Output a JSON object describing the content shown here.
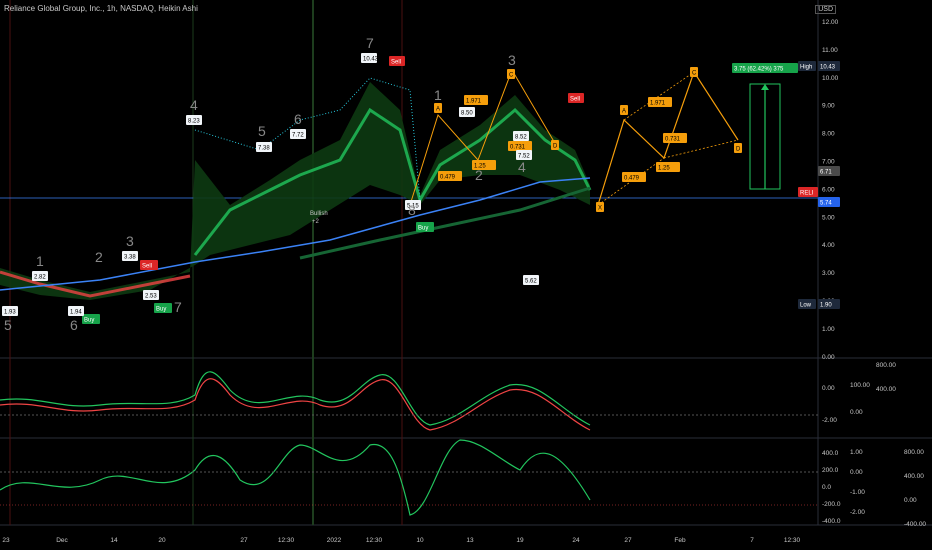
{
  "header": {
    "symbol_title": "Reliance Global Group, Inc., 1h, NASDAQ, Heikin Ashi",
    "currency": "USD"
  },
  "price_axis": {
    "ticks": [
      "12.00",
      "11.00",
      "10.00",
      "9.00",
      "8.00",
      "7.00",
      "6.00",
      "5.00",
      "4.00",
      "3.00",
      "2.00",
      "1.00",
      "0.00"
    ],
    "high_label": "High",
    "high_value": "10.43",
    "close_value": "6.71",
    "symbol_badge": "RELI",
    "symbol_value": "5.74",
    "low_label": "Low",
    "low_value": "1.90"
  },
  "projection": {
    "label": "3.75 (62.42%) 375"
  },
  "harmonic": {
    "points": [
      "X",
      "A",
      "B",
      "C",
      "D"
    ],
    "ratios": [
      "0.479",
      "1.971",
      "0.731",
      "1.25"
    ]
  },
  "signals": {
    "buy": "Buy",
    "sell": "Sell",
    "bullish": "Bullish",
    "bullish_value": "+2"
  },
  "count_labels": [
    "1",
    "2",
    "3",
    "4",
    "5",
    "6",
    "7",
    "8"
  ],
  "price_labels": [
    "1.93",
    "1.94",
    "2.82",
    "2.53",
    "3.38",
    "8.23",
    "7.38",
    "7.72",
    "10.43",
    "8.50",
    "8.52",
    "7.52",
    "5.62",
    "5.15"
  ],
  "osc1_axis": {
    "left": [
      "0.00",
      "-2.00"
    ],
    "mid": [
      "100.00",
      "0.00"
    ],
    "right": [
      "800.00",
      "400.00"
    ]
  },
  "osc2_axis": {
    "left": [
      "400.0",
      "200.0",
      "0.0",
      "-200.0",
      "-400.0"
    ],
    "mid": [
      "1.00",
      "0.00",
      "-1.00",
      "-2.00"
    ],
    "right": [
      "800.00",
      "400.00",
      "0.00",
      "-400.00"
    ]
  },
  "time_axis": [
    "23",
    "Dec",
    "14",
    "20",
    "27",
    "12:30",
    "2022",
    "12:30",
    "10",
    "13",
    "19",
    "24",
    "27",
    "Feb",
    "7",
    "12:30"
  ],
  "colors": {
    "bull": "#22c55e",
    "bear": "#ef4444",
    "orange": "#f59e0b",
    "blue": "#3b82f6",
    "teal": "#26c6da"
  }
}
